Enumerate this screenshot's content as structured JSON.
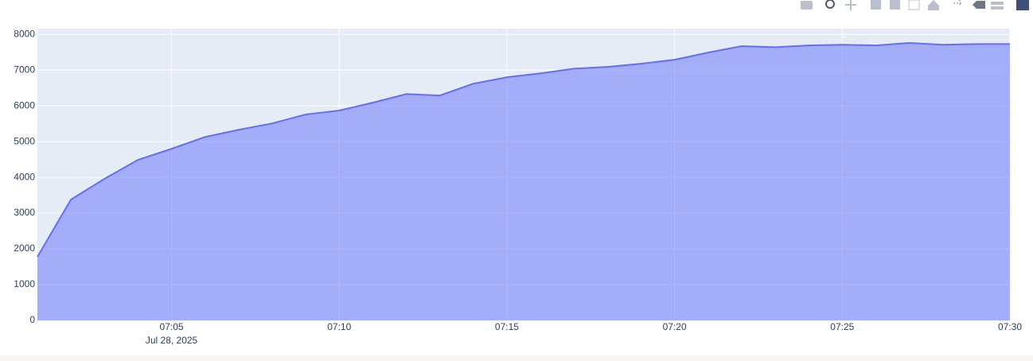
{
  "chart_data": {
    "type": "area",
    "x": [
      "2025-07-28 07:01",
      "2025-07-28 07:02",
      "2025-07-28 07:03",
      "2025-07-28 07:04",
      "2025-07-28 07:05",
      "2025-07-28 07:06",
      "2025-07-28 07:07",
      "2025-07-28 07:08",
      "2025-07-28 07:09",
      "2025-07-28 07:10",
      "2025-07-28 07:11",
      "2025-07-28 07:12",
      "2025-07-28 07:13",
      "2025-07-28 07:14",
      "2025-07-28 07:15",
      "2025-07-28 07:16",
      "2025-07-28 07:17",
      "2025-07-28 07:18",
      "2025-07-28 07:19",
      "2025-07-28 07:20",
      "2025-07-28 07:21",
      "2025-07-28 07:22",
      "2025-07-28 07:23",
      "2025-07-28 07:24",
      "2025-07-28 07:25",
      "2025-07-28 07:26",
      "2025-07-28 07:27",
      "2025-07-28 07:28",
      "2025-07-28 07:29",
      "2025-07-28 07:30"
    ],
    "series": [
      {
        "color": "#636efa",
        "values": [
          1780,
          3380,
          3960,
          4490,
          4800,
          5130,
          5330,
          5510,
          5760,
          5870,
          6090,
          6330,
          6290,
          6620,
          6800,
          6910,
          7040,
          7090,
          7180,
          7290,
          7490,
          7670,
          7640,
          7690,
          7710,
          7690,
          7760,
          7710,
          7730,
          7730
        ]
      }
    ],
    "xlim": [
      "2025-07-28 07:01",
      "2025-07-28 07:30"
    ],
    "xticks": [
      {
        "value": "2025-07-28 07:05",
        "label": "07:05"
      },
      {
        "value": "2025-07-28 07:10",
        "label": "07:10"
      },
      {
        "value": "2025-07-28 07:15",
        "label": "07:15"
      },
      {
        "value": "2025-07-28 07:20",
        "label": "07:20"
      },
      {
        "value": "2025-07-28 07:25",
        "label": "07:25"
      },
      {
        "value": "2025-07-28 07:30",
        "label": "07:30"
      }
    ],
    "x_date_label": "Jul 28, 2025",
    "ylim": [
      0,
      8160
    ],
    "yticks": [
      0,
      1000,
      2000,
      3000,
      4000,
      5000,
      6000,
      7000,
      8000
    ],
    "grid": true
  }
}
